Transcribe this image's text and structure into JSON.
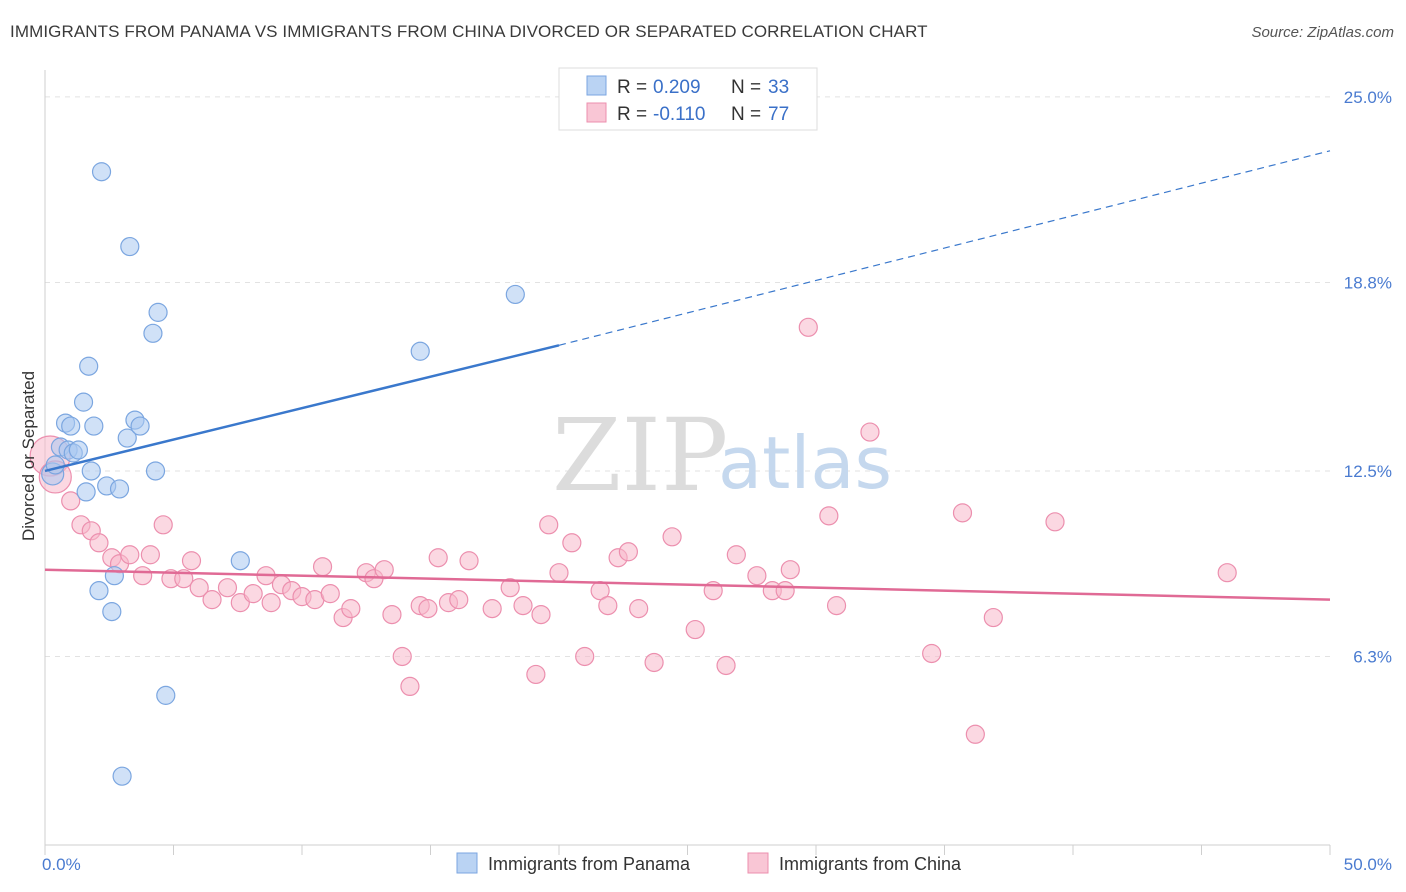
{
  "chart_data": {
    "type": "scatter",
    "title": "IMMIGRANTS FROM PANAMA VS IMMIGRANTS FROM CHINA DIVORCED OR SEPARATED CORRELATION CHART",
    "source": "Source: ZipAtlas.com",
    "ylabel": "Divorced or Separated",
    "xlabel": "",
    "xlim": [
      0,
      50
    ],
    "ylim": [
      0,
      25.9
    ],
    "x_tick_labels": [
      "0.0%",
      "50.0%"
    ],
    "y_ticks": [
      {
        "value": 25.0,
        "label": "25.0%"
      },
      {
        "value": 18.8,
        "label": "18.8%"
      },
      {
        "value": 12.5,
        "label": "12.5%"
      },
      {
        "value": 6.3,
        "label": "6.3%"
      }
    ],
    "watermark": {
      "zip": "ZIP",
      "atlas": "atlas"
    },
    "legend": {
      "r_label": "R =",
      "n_label": "N =",
      "entries": [
        {
          "name": "Immigrants from Panama",
          "r": "0.209",
          "n": "33",
          "color": "#a9c8f0",
          "stroke": "#7ba6e0"
        },
        {
          "name": "Immigrants from China",
          "r": "-0.110",
          "n": "77",
          "color": "#f7b8cb",
          "stroke": "#ec8fae"
        }
      ]
    },
    "series": [
      {
        "name": "Immigrants from Panama",
        "color": "#a9c8f0",
        "stroke": "#7ba6e0",
        "trend": {
          "x0": 0,
          "y0": 12.5,
          "x1": 20,
          "y1": 16.7,
          "dash_to_x": 50,
          "dash_to_y": 23.2,
          "color": "#3a78cc"
        },
        "points": [
          [
            0.3,
            12.4,
            11
          ],
          [
            0.4,
            12.7,
            9
          ],
          [
            0.6,
            13.3,
            9
          ],
          [
            0.8,
            14.1,
            9
          ],
          [
            0.9,
            13.2,
            9
          ],
          [
            1.0,
            14.0,
            9
          ],
          [
            1.1,
            13.1,
            9
          ],
          [
            1.3,
            13.2,
            9
          ],
          [
            1.5,
            14.8,
            9
          ],
          [
            1.6,
            11.8,
            9
          ],
          [
            1.7,
            16.0,
            9
          ],
          [
            1.8,
            12.5,
            9
          ],
          [
            1.9,
            14.0,
            9
          ],
          [
            2.1,
            8.5,
            9
          ],
          [
            2.2,
            22.5,
            9
          ],
          [
            2.4,
            12.0,
            9
          ],
          [
            2.6,
            7.8,
            9
          ],
          [
            2.7,
            9.0,
            9
          ],
          [
            2.9,
            11.9,
            9
          ],
          [
            3.0,
            2.3,
            9
          ],
          [
            3.2,
            13.6,
            9
          ],
          [
            3.3,
            20.0,
            9
          ],
          [
            3.5,
            14.2,
            9
          ],
          [
            3.7,
            14.0,
            9
          ],
          [
            4.2,
            17.1,
            9
          ],
          [
            4.3,
            12.5,
            9
          ],
          [
            4.4,
            17.8,
            9
          ],
          [
            4.7,
            5.0,
            9
          ],
          [
            7.6,
            9.5,
            9
          ],
          [
            14.6,
            16.5,
            9
          ],
          [
            18.3,
            18.4,
            9
          ]
        ]
      },
      {
        "name": "Immigrants from China",
        "color": "#f7b8cb",
        "stroke": "#ec8fae",
        "trend": {
          "x0": 0,
          "y0": 9.2,
          "x1": 50,
          "y1": 8.2,
          "color": "#e06a95"
        },
        "points": [
          [
            0.2,
            13.0,
            20
          ],
          [
            0.4,
            12.3,
            16
          ],
          [
            1.0,
            11.5,
            9
          ],
          [
            1.4,
            10.7,
            9
          ],
          [
            1.8,
            10.5,
            9
          ],
          [
            2.1,
            10.1,
            9
          ],
          [
            2.6,
            9.6,
            9
          ],
          [
            2.9,
            9.4,
            9
          ],
          [
            3.3,
            9.7,
            9
          ],
          [
            3.8,
            9.0,
            9
          ],
          [
            4.1,
            9.7,
            9
          ],
          [
            4.6,
            10.7,
            9
          ],
          [
            4.9,
            8.9,
            9
          ],
          [
            5.4,
            8.9,
            9
          ],
          [
            5.7,
            9.5,
            9
          ],
          [
            6.0,
            8.6,
            9
          ],
          [
            6.5,
            8.2,
            9
          ],
          [
            7.1,
            8.6,
            9
          ],
          [
            7.6,
            8.1,
            9
          ],
          [
            8.1,
            8.4,
            9
          ],
          [
            8.6,
            9.0,
            9
          ],
          [
            8.8,
            8.1,
            9
          ],
          [
            9.2,
            8.7,
            9
          ],
          [
            9.6,
            8.5,
            9
          ],
          [
            10.0,
            8.3,
            9
          ],
          [
            10.5,
            8.2,
            9
          ],
          [
            10.8,
            9.3,
            9
          ],
          [
            11.1,
            8.4,
            9
          ],
          [
            11.6,
            7.6,
            9
          ],
          [
            11.9,
            7.9,
            9
          ],
          [
            12.5,
            9.1,
            9
          ],
          [
            12.8,
            8.9,
            9
          ],
          [
            13.2,
            9.2,
            9
          ],
          [
            13.5,
            7.7,
            9
          ],
          [
            13.9,
            6.3,
            9
          ],
          [
            14.2,
            5.3,
            9
          ],
          [
            14.6,
            8.0,
            9
          ],
          [
            14.9,
            7.9,
            9
          ],
          [
            15.3,
            9.6,
            9
          ],
          [
            15.7,
            8.1,
            9
          ],
          [
            16.1,
            8.2,
            9
          ],
          [
            16.5,
            9.5,
            9
          ],
          [
            17.4,
            7.9,
            9
          ],
          [
            18.1,
            8.6,
            9
          ],
          [
            18.6,
            8.0,
            9
          ],
          [
            19.1,
            5.7,
            9
          ],
          [
            19.3,
            7.7,
            9
          ],
          [
            19.6,
            10.7,
            9
          ],
          [
            20.0,
            9.1,
            9
          ],
          [
            20.5,
            10.1,
            9
          ],
          [
            21.0,
            6.3,
            9
          ],
          [
            21.6,
            8.5,
            9
          ],
          [
            21.9,
            8.0,
            9
          ],
          [
            22.3,
            9.6,
            9
          ],
          [
            22.7,
            9.8,
            9
          ],
          [
            23.1,
            7.9,
            9
          ],
          [
            23.7,
            6.1,
            9
          ],
          [
            24.4,
            10.3,
            9
          ],
          [
            25.3,
            7.2,
            9
          ],
          [
            26.0,
            8.5,
            9
          ],
          [
            26.5,
            6.0,
            9
          ],
          [
            26.9,
            9.7,
            9
          ],
          [
            27.7,
            9.0,
            9
          ],
          [
            28.3,
            8.5,
            9
          ],
          [
            28.8,
            8.5,
            9
          ],
          [
            29.0,
            9.2,
            9
          ],
          [
            29.7,
            17.3,
            9
          ],
          [
            30.5,
            11.0,
            9
          ],
          [
            30.8,
            8.0,
            9
          ],
          [
            32.1,
            13.8,
            9
          ],
          [
            34.5,
            6.4,
            9
          ],
          [
            35.7,
            11.1,
            9
          ],
          [
            36.2,
            3.7,
            9
          ],
          [
            36.9,
            7.6,
            9
          ],
          [
            39.3,
            10.8,
            9
          ],
          [
            46.0,
            9.1,
            9
          ]
        ]
      }
    ]
  }
}
